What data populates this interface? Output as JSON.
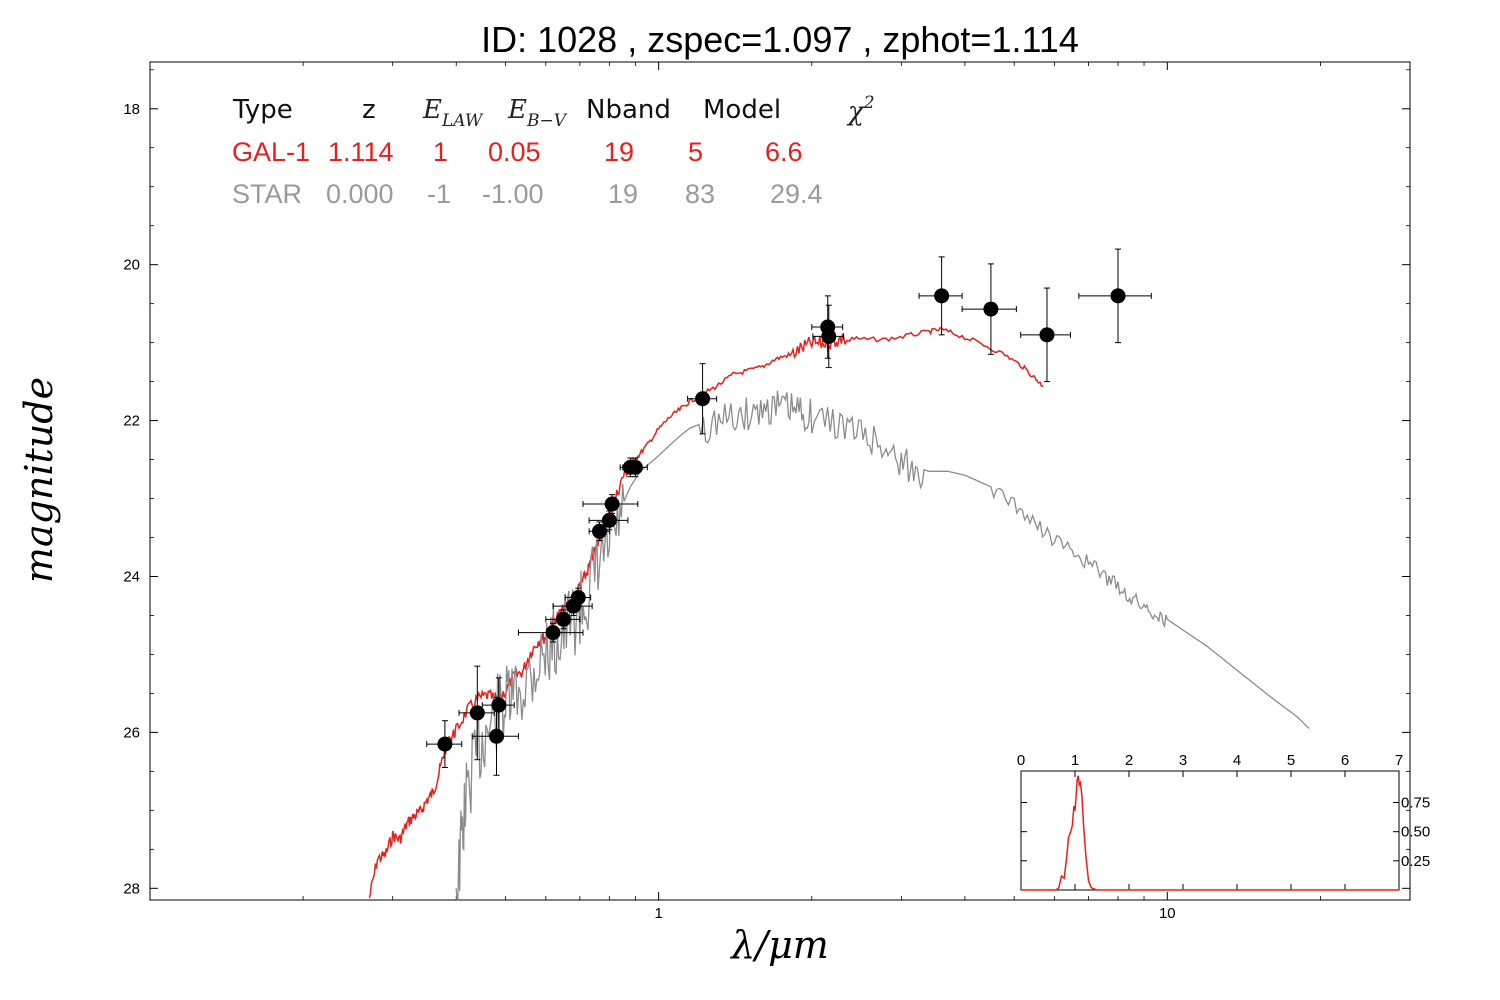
{
  "title": "ID:  1028  , zspec=1.097 , zphot=1.114",
  "colors": {
    "galaxy": "#e8201c",
    "star": "#8c8c8c",
    "points": "#000000"
  },
  "table": {
    "headers": [
      "Type",
      "z",
      "E",
      "E",
      "Nband",
      "Model",
      "χ"
    ],
    "header_subs": {
      "e_law": "LAW",
      "e_bv": "B−V",
      "chi": "2"
    },
    "rows": [
      {
        "name": "gal",
        "cells": [
          "GAL-1",
          "1.114",
          "1",
          "0.05",
          "19",
          "5",
          "6.6"
        ]
      },
      {
        "name": "star",
        "cells": [
          "STAR",
          "0.000",
          "-1",
          "-1.00",
          "19",
          "83",
          "29.4"
        ]
      }
    ]
  },
  "chart_data": {
    "type": "scatter",
    "title": "ID:  1028  , zspec=1.097 , zphot=1.114",
    "xlabel": "λ/μm",
    "ylabel": "magnitude",
    "xscale": "log",
    "xlim": [
      0.1,
      30
    ],
    "ylim": [
      28.15,
      17.4
    ],
    "yaxis_inverted": true,
    "x_ticks": [
      {
        "value": 1,
        "label": "1"
      },
      {
        "value": 10,
        "label": "10"
      }
    ],
    "y_ticks": [
      {
        "value": 18,
        "label": "18"
      },
      {
        "value": 20,
        "label": "20"
      },
      {
        "value": 22,
        "label": "22"
      },
      {
        "value": 24,
        "label": "24"
      },
      {
        "value": 26,
        "label": "26"
      },
      {
        "value": 28,
        "label": "28"
      }
    ],
    "grid": false,
    "points": [
      {
        "x": 0.38,
        "y": 26.15,
        "xerr": 0.03,
        "yerr": 0.3
      },
      {
        "x": 0.44,
        "y": 25.75,
        "xerr": 0.035,
        "yerr": 0.6
      },
      {
        "x": 0.48,
        "y": 26.05,
        "xerr": 0.05,
        "yerr": 0.5
      },
      {
        "x": 0.485,
        "y": 25.65,
        "xerr": 0.035,
        "yerr": 0.35
      },
      {
        "x": 0.62,
        "y": 24.72,
        "xerr": 0.09,
        "yerr": 0.12
      },
      {
        "x": 0.65,
        "y": 24.55,
        "xerr": 0.05,
        "yerr": 0.12
      },
      {
        "x": 0.68,
        "y": 24.38,
        "xerr": 0.06,
        "yerr": 0.12
      },
      {
        "x": 0.695,
        "y": 24.27,
        "xerr": 0.04,
        "yerr": 0.12
      },
      {
        "x": 0.765,
        "y": 23.42,
        "xerr": 0.035,
        "yerr": 0.12
      },
      {
        "x": 0.8,
        "y": 23.28,
        "xerr": 0.07,
        "yerr": 0.12
      },
      {
        "x": 0.81,
        "y": 23.07,
        "xerr": 0.1,
        "yerr": 0.12
      },
      {
        "x": 0.88,
        "y": 22.6,
        "xerr": 0.04,
        "yerr": 0.12
      },
      {
        "x": 0.9,
        "y": 22.6,
        "xerr": 0.05,
        "yerr": 0.12
      },
      {
        "x": 1.22,
        "y": 21.72,
        "xerr": 0.08,
        "yerr": 0.45
      },
      {
        "x": 2.15,
        "y": 20.8,
        "xerr": 0.15,
        "yerr": 0.4
      },
      {
        "x": 2.16,
        "y": 20.92,
        "xerr": 0.15,
        "yerr": 0.4
      },
      {
        "x": 3.6,
        "y": 20.4,
        "xerr": 0.35,
        "yerr": 0.5
      },
      {
        "x": 4.5,
        "y": 20.57,
        "xerr": 0.55,
        "yerr": 0.58
      },
      {
        "x": 5.8,
        "y": 20.9,
        "xerr": 0.65,
        "yerr": 0.6
      },
      {
        "x": 8.0,
        "y": 20.4,
        "xerr": 1.3,
        "yerr": 0.6
      }
    ],
    "series": [
      {
        "style": "galaxy",
        "x": [
          0.27,
          0.28,
          0.29,
          0.3,
          0.31,
          0.32,
          0.33,
          0.34,
          0.35,
          0.36,
          0.37,
          0.38,
          0.39,
          0.4,
          0.42,
          0.44,
          0.46,
          0.48,
          0.5,
          0.52,
          0.54,
          0.56,
          0.58,
          0.6,
          0.62,
          0.64,
          0.66,
          0.68,
          0.7,
          0.72,
          0.74,
          0.76,
          0.78,
          0.8,
          0.82,
          0.85,
          0.88,
          0.91,
          0.95,
          1.0,
          1.05,
          1.1,
          1.15,
          1.22,
          1.3,
          1.4,
          1.5,
          1.6,
          1.7,
          1.8,
          1.9,
          2.0,
          2.1,
          2.2,
          2.3,
          2.5,
          2.8,
          3.1,
          3.4,
          3.6,
          3.9,
          4.3,
          4.8,
          5.2,
          5.5,
          5.7
        ],
        "y": [
          28.1,
          27.6,
          27.55,
          27.3,
          27.35,
          27.15,
          27.05,
          27.0,
          26.85,
          26.75,
          26.5,
          26.2,
          26.05,
          25.95,
          25.7,
          25.55,
          25.5,
          25.55,
          25.45,
          25.25,
          25.2,
          24.95,
          24.8,
          24.75,
          24.55,
          24.45,
          24.35,
          24.3,
          24.1,
          23.95,
          23.75,
          23.55,
          23.35,
          23.1,
          23.0,
          22.7,
          22.55,
          22.45,
          22.3,
          22.1,
          21.95,
          21.85,
          21.75,
          21.65,
          21.55,
          21.4,
          21.35,
          21.3,
          21.2,
          21.15,
          21.05,
          20.98,
          20.98,
          20.95,
          20.92,
          20.95,
          20.95,
          20.9,
          20.85,
          20.82,
          20.9,
          21.0,
          21.15,
          21.3,
          21.45,
          21.55
        ]
      },
      {
        "style": "star",
        "x": [
          0.4,
          0.41,
          0.42,
          0.44,
          0.46,
          0.48,
          0.5,
          0.52,
          0.55,
          0.58,
          0.61,
          0.64,
          0.67,
          0.7,
          0.73,
          0.76,
          0.8,
          0.84,
          0.88,
          0.92,
          0.96,
          1.0,
          1.05,
          1.1,
          1.15,
          1.2,
          1.3,
          1.4,
          1.5,
          1.6,
          1.7,
          1.8,
          1.9,
          2.0,
          2.2,
          2.4,
          2.6,
          2.8,
          3.0,
          3.2,
          3.4,
          3.7,
          4.0,
          4.5,
          5.0,
          5.5,
          6.0,
          6.5,
          7.0,
          7.5,
          8.0,
          8.5,
          9.0,
          9.5,
          10.0,
          12.0,
          14.0,
          16.0,
          18.0,
          19.0
        ],
        "y": [
          28.0,
          27.2,
          26.6,
          26.1,
          25.8,
          25.6,
          25.5,
          25.4,
          25.2,
          24.95,
          24.75,
          24.6,
          24.45,
          24.3,
          24.05,
          23.75,
          23.45,
          23.15,
          22.85,
          22.65,
          22.55,
          22.45,
          22.32,
          22.2,
          22.1,
          22.05,
          21.95,
          21.9,
          21.85,
          21.78,
          21.75,
          21.78,
          21.82,
          21.88,
          21.95,
          22.05,
          22.15,
          22.3,
          22.45,
          22.6,
          22.65,
          22.65,
          22.7,
          22.85,
          23.05,
          23.3,
          23.5,
          23.65,
          23.8,
          23.95,
          24.1,
          24.25,
          24.35,
          24.45,
          24.55,
          24.9,
          25.25,
          25.55,
          25.8,
          25.95
        ]
      }
    ],
    "inset": {
      "type": "line",
      "xlim": [
        0,
        7
      ],
      "ylim": [
        0,
        1.02
      ],
      "x_ticks": [
        "0",
        "1",
        "2",
        "3",
        "4",
        "5",
        "6",
        "7"
      ],
      "y_ticks": [
        {
          "value": 0.25,
          "label": "0.25"
        },
        {
          "value": 0.5,
          "label": "0.50"
        },
        {
          "value": 0.75,
          "label": "0.75"
        }
      ],
      "x": [
        0,
        0.65,
        0.7,
        0.75,
        0.8,
        0.85,
        0.88,
        0.92,
        0.95,
        0.98,
        1.0,
        1.02,
        1.04,
        1.06,
        1.08,
        1.1,
        1.13,
        1.16,
        1.2,
        1.25,
        1.3,
        1.4,
        7
      ],
      "y": [
        0,
        0,
        0.02,
        0.12,
        0.1,
        0.3,
        0.45,
        0.5,
        0.55,
        0.72,
        0.68,
        0.8,
        0.95,
        0.98,
        0.9,
        0.92,
        0.8,
        0.55,
        0.3,
        0.08,
        0.02,
        0,
        0
      ]
    }
  }
}
